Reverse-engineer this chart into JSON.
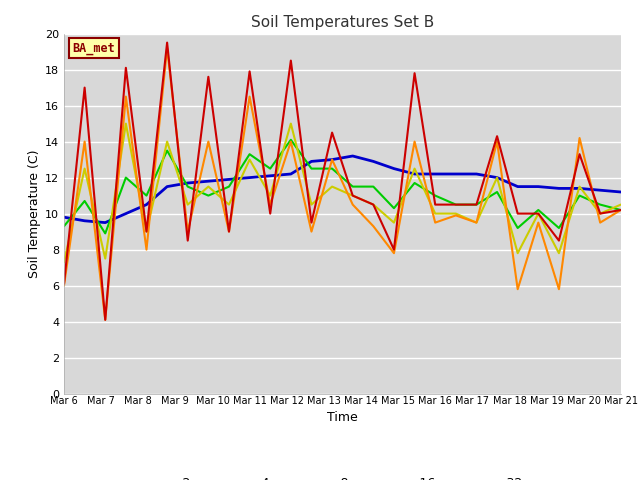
{
  "title": "Soil Temperatures Set B",
  "xlabel": "Time",
  "ylabel": "Soil Temperature (C)",
  "annotation": "BA_met",
  "ylim": [
    0,
    20
  ],
  "n_days": 16,
  "xtick_labels": [
    "Mar 6",
    "Mar 7",
    "Mar 8",
    "Mar 9",
    "Mar 10",
    "Mar 11",
    "Mar 12",
    "Mar 13",
    "Mar 14",
    "Mar 15",
    "Mar 16",
    "Mar 17",
    "Mar 18",
    "Mar 19",
    "Mar 20",
    "Mar 21"
  ],
  "colors": {
    "-2cm": "#cc0000",
    "-4cm": "#ff8800",
    "-8cm": "#cccc00",
    "-16cm": "#00cc00",
    "-32cm": "#0000cc"
  },
  "linewidths": {
    "-2cm": 1.5,
    "-4cm": 1.5,
    "-8cm": 1.5,
    "-16cm": 1.5,
    "-32cm": 2.0
  },
  "data": {
    "-2cm": [
      6.1,
      17.0,
      4.1,
      18.1,
      9.0,
      19.5,
      8.5,
      17.6,
      9.0,
      17.9,
      10.0,
      18.5,
      9.5,
      14.5,
      11.0,
      10.5,
      8.0,
      17.8,
      10.5,
      10.5,
      10.5,
      14.3,
      10.0,
      10.0,
      8.5,
      13.3,
      10.0,
      10.2
    ],
    "-4cm": [
      6.0,
      14.0,
      4.1,
      16.5,
      8.0,
      19.2,
      9.0,
      14.0,
      9.0,
      16.5,
      10.5,
      14.0,
      9.0,
      13.0,
      10.5,
      9.3,
      7.8,
      14.0,
      9.5,
      9.9,
      9.5,
      14.0,
      5.8,
      9.5,
      5.8,
      14.2,
      9.5,
      10.2
    ],
    "-8cm": [
      7.3,
      12.5,
      7.5,
      15.0,
      9.0,
      14.0,
      10.5,
      11.5,
      10.5,
      13.0,
      11.0,
      15.0,
      10.5,
      11.5,
      11.0,
      10.5,
      9.5,
      12.5,
      10.0,
      10.0,
      9.5,
      12.0,
      7.8,
      10.0,
      7.8,
      11.5,
      10.0,
      10.5
    ],
    "-16cm": [
      9.3,
      10.7,
      8.9,
      12.0,
      11.0,
      13.5,
      11.5,
      11.0,
      11.5,
      13.3,
      12.5,
      14.1,
      12.5,
      12.5,
      11.5,
      11.5,
      10.3,
      11.7,
      11.0,
      10.5,
      10.5,
      11.2,
      9.2,
      10.2,
      9.2,
      11.0,
      10.5,
      10.2
    ],
    "-32cm": [
      9.8,
      9.6,
      9.5,
      10.0,
      10.5,
      11.5,
      11.7,
      11.8,
      11.9,
      12.0,
      12.1,
      12.2,
      12.9,
      13.0,
      13.2,
      12.9,
      12.5,
      12.2,
      12.2,
      12.2,
      12.2,
      12.0,
      11.5,
      11.5,
      11.4,
      11.4,
      11.3,
      11.2
    ]
  }
}
